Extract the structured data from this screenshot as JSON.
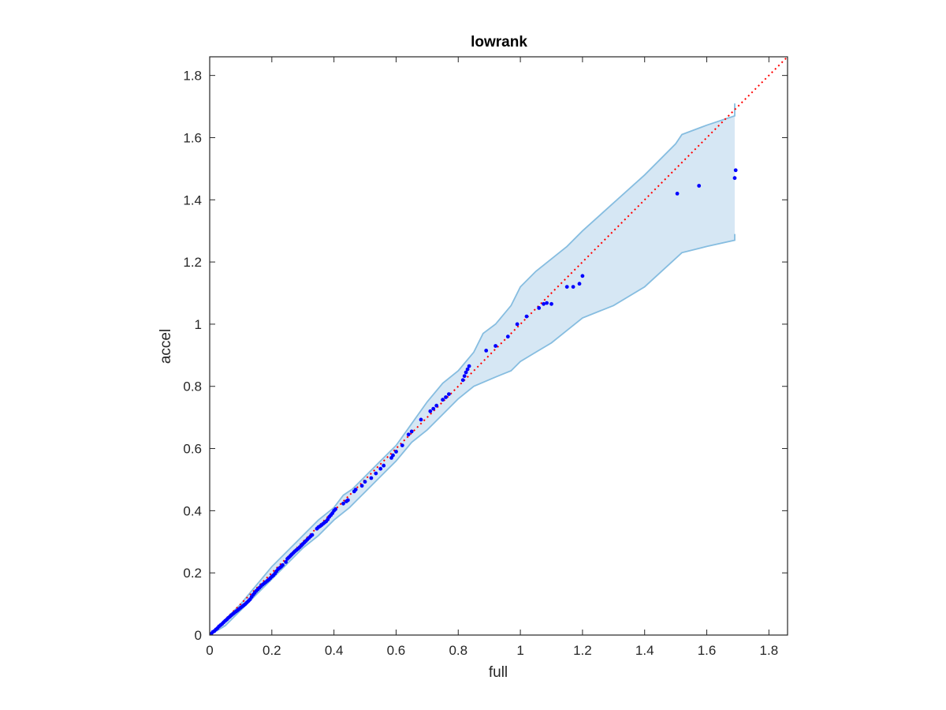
{
  "chart_data": {
    "type": "scatter",
    "title": "lowrank",
    "xlabel": "full",
    "ylabel": "accel",
    "xlim": [
      0,
      1.86
    ],
    "ylim": [
      0,
      1.86
    ],
    "x_ticks": [
      "0",
      "0.2",
      "0.4",
      "0.6",
      "0.8",
      "1",
      "1.2",
      "1.4",
      "1.6",
      "1.8"
    ],
    "y_ticks": [
      "0",
      "0.2",
      "0.4",
      "0.6",
      "0.8",
      "1",
      "1.2",
      "1.4",
      "1.6",
      "1.8"
    ],
    "grid": false,
    "legend": "none",
    "colors": {
      "points": "#0000ff",
      "points_core": "#d01050",
      "reference_line": "#ff0000",
      "band_fill": "#d6e7f4",
      "band_edge": "#86bde0",
      "axes": "#262626"
    },
    "reference_line": {
      "style": "dotted",
      "from": [
        0,
        0
      ],
      "to": [
        1.86,
        1.86
      ]
    },
    "band": {
      "upper": [
        [
          0,
          0
        ],
        [
          0.05,
          0.05
        ],
        [
          0.1,
          0.1
        ],
        [
          0.15,
          0.16
        ],
        [
          0.2,
          0.22
        ],
        [
          0.25,
          0.27
        ],
        [
          0.3,
          0.32
        ],
        [
          0.35,
          0.37
        ],
        [
          0.4,
          0.41
        ],
        [
          0.43,
          0.45
        ],
        [
          0.46,
          0.47
        ],
        [
          0.5,
          0.51
        ],
        [
          0.55,
          0.56
        ],
        [
          0.6,
          0.61
        ],
        [
          0.65,
          0.68
        ],
        [
          0.7,
          0.75
        ],
        [
          0.75,
          0.81
        ],
        [
          0.8,
          0.85
        ],
        [
          0.85,
          0.91
        ],
        [
          0.88,
          0.97
        ],
        [
          0.92,
          1.0
        ],
        [
          0.97,
          1.06
        ],
        [
          1.0,
          1.12
        ],
        [
          1.05,
          1.17
        ],
        [
          1.1,
          1.21
        ],
        [
          1.15,
          1.25
        ],
        [
          1.2,
          1.3
        ],
        [
          1.3,
          1.39
        ],
        [
          1.4,
          1.48
        ],
        [
          1.5,
          1.58
        ],
        [
          1.52,
          1.61
        ],
        [
          1.6,
          1.64
        ],
        [
          1.69,
          1.67
        ],
        [
          1.69,
          1.71
        ]
      ],
      "lower": [
        [
          1.69,
          1.29
        ],
        [
          1.69,
          1.27
        ],
        [
          1.6,
          1.25
        ],
        [
          1.52,
          1.23
        ],
        [
          1.4,
          1.12
        ],
        [
          1.3,
          1.06
        ],
        [
          1.2,
          1.02
        ],
        [
          1.15,
          0.98
        ],
        [
          1.1,
          0.94
        ],
        [
          1.05,
          0.91
        ],
        [
          1.0,
          0.88
        ],
        [
          0.97,
          0.85
        ],
        [
          0.92,
          0.83
        ],
        [
          0.85,
          0.8
        ],
        [
          0.8,
          0.76
        ],
        [
          0.75,
          0.71
        ],
        [
          0.7,
          0.66
        ],
        [
          0.65,
          0.62
        ],
        [
          0.6,
          0.56
        ],
        [
          0.55,
          0.51
        ],
        [
          0.5,
          0.46
        ],
        [
          0.45,
          0.41
        ],
        [
          0.4,
          0.37
        ],
        [
          0.35,
          0.32
        ],
        [
          0.3,
          0.28
        ],
        [
          0.25,
          0.23
        ],
        [
          0.2,
          0.18
        ],
        [
          0.15,
          0.13
        ],
        [
          0.1,
          0.08
        ],
        [
          0.05,
          0.03
        ],
        [
          0,
          0
        ]
      ]
    },
    "points": [
      [
        0.0,
        0.0
      ],
      [
        0.005,
        0.004
      ],
      [
        0.01,
        0.01
      ],
      [
        0.015,
        0.013
      ],
      [
        0.02,
        0.018
      ],
      [
        0.025,
        0.022
      ],
      [
        0.03,
        0.028
      ],
      [
        0.035,
        0.032
      ],
      [
        0.04,
        0.036
      ],
      [
        0.045,
        0.041
      ],
      [
        0.05,
        0.046
      ],
      [
        0.055,
        0.05
      ],
      [
        0.06,
        0.055
      ],
      [
        0.065,
        0.059
      ],
      [
        0.07,
        0.064
      ],
      [
        0.075,
        0.068
      ],
      [
        0.08,
        0.072
      ],
      [
        0.085,
        0.076
      ],
      [
        0.09,
        0.08
      ],
      [
        0.095,
        0.084
      ],
      [
        0.1,
        0.088
      ],
      [
        0.105,
        0.092
      ],
      [
        0.11,
        0.096
      ],
      [
        0.115,
        0.1
      ],
      [
        0.12,
        0.105
      ],
      [
        0.125,
        0.11
      ],
      [
        0.13,
        0.115
      ],
      [
        0.135,
        0.123
      ],
      [
        0.14,
        0.13
      ],
      [
        0.145,
        0.136
      ],
      [
        0.15,
        0.142
      ],
      [
        0.155,
        0.147
      ],
      [
        0.16,
        0.152
      ],
      [
        0.165,
        0.157
      ],
      [
        0.17,
        0.162
      ],
      [
        0.175,
        0.166
      ],
      [
        0.18,
        0.17
      ],
      [
        0.185,
        0.174
      ],
      [
        0.19,
        0.178
      ],
      [
        0.195,
        0.183
      ],
      [
        0.2,
        0.188
      ],
      [
        0.205,
        0.192
      ],
      [
        0.21,
        0.198
      ],
      [
        0.215,
        0.205
      ],
      [
        0.22,
        0.212
      ],
      [
        0.225,
        0.216
      ],
      [
        0.23,
        0.22
      ],
      [
        0.235,
        0.225
      ],
      [
        0.245,
        0.235
      ],
      [
        0.25,
        0.245
      ],
      [
        0.255,
        0.25
      ],
      [
        0.26,
        0.255
      ],
      [
        0.265,
        0.26
      ],
      [
        0.27,
        0.265
      ],
      [
        0.275,
        0.27
      ],
      [
        0.28,
        0.274
      ],
      [
        0.285,
        0.278
      ],
      [
        0.29,
        0.283
      ],
      [
        0.295,
        0.288
      ],
      [
        0.3,
        0.293
      ],
      [
        0.305,
        0.298
      ],
      [
        0.31,
        0.303
      ],
      [
        0.315,
        0.308
      ],
      [
        0.32,
        0.313
      ],
      [
        0.325,
        0.318
      ],
      [
        0.33,
        0.322
      ],
      [
        0.345,
        0.342
      ],
      [
        0.35,
        0.347
      ],
      [
        0.355,
        0.35
      ],
      [
        0.36,
        0.354
      ],
      [
        0.365,
        0.358
      ],
      [
        0.37,
        0.362
      ],
      [
        0.375,
        0.366
      ],
      [
        0.38,
        0.372
      ],
      [
        0.385,
        0.38
      ],
      [
        0.39,
        0.386
      ],
      [
        0.395,
        0.392
      ],
      [
        0.4,
        0.4
      ],
      [
        0.405,
        0.405
      ],
      [
        0.43,
        0.423
      ],
      [
        0.44,
        0.43
      ],
      [
        0.445,
        0.434
      ],
      [
        0.465,
        0.462
      ],
      [
        0.47,
        0.468
      ],
      [
        0.49,
        0.48
      ],
      [
        0.5,
        0.493
      ],
      [
        0.52,
        0.505
      ],
      [
        0.535,
        0.52
      ],
      [
        0.55,
        0.535
      ],
      [
        0.56,
        0.545
      ],
      [
        0.585,
        0.57
      ],
      [
        0.59,
        0.578
      ],
      [
        0.6,
        0.59
      ],
      [
        0.62,
        0.61
      ],
      [
        0.64,
        0.645
      ],
      [
        0.65,
        0.655
      ],
      [
        0.68,
        0.693
      ],
      [
        0.71,
        0.72
      ],
      [
        0.72,
        0.728
      ],
      [
        0.73,
        0.738
      ],
      [
        0.75,
        0.757
      ],
      [
        0.76,
        0.765
      ],
      [
        0.77,
        0.775
      ],
      [
        0.815,
        0.82
      ],
      [
        0.82,
        0.833
      ],
      [
        0.825,
        0.845
      ],
      [
        0.83,
        0.855
      ],
      [
        0.835,
        0.865
      ],
      [
        0.89,
        0.915
      ],
      [
        0.92,
        0.93
      ],
      [
        0.96,
        0.96
      ],
      [
        0.99,
        1.0
      ],
      [
        1.02,
        1.025
      ],
      [
        1.06,
        1.052
      ],
      [
        1.075,
        1.065
      ],
      [
        1.085,
        1.068
      ],
      [
        1.1,
        1.065
      ],
      [
        1.15,
        1.12
      ],
      [
        1.17,
        1.12
      ],
      [
        1.19,
        1.13
      ],
      [
        1.2,
        1.155
      ],
      [
        1.505,
        1.42
      ],
      [
        1.575,
        1.445
      ],
      [
        1.69,
        1.47
      ],
      [
        1.693,
        1.495
      ]
    ]
  }
}
